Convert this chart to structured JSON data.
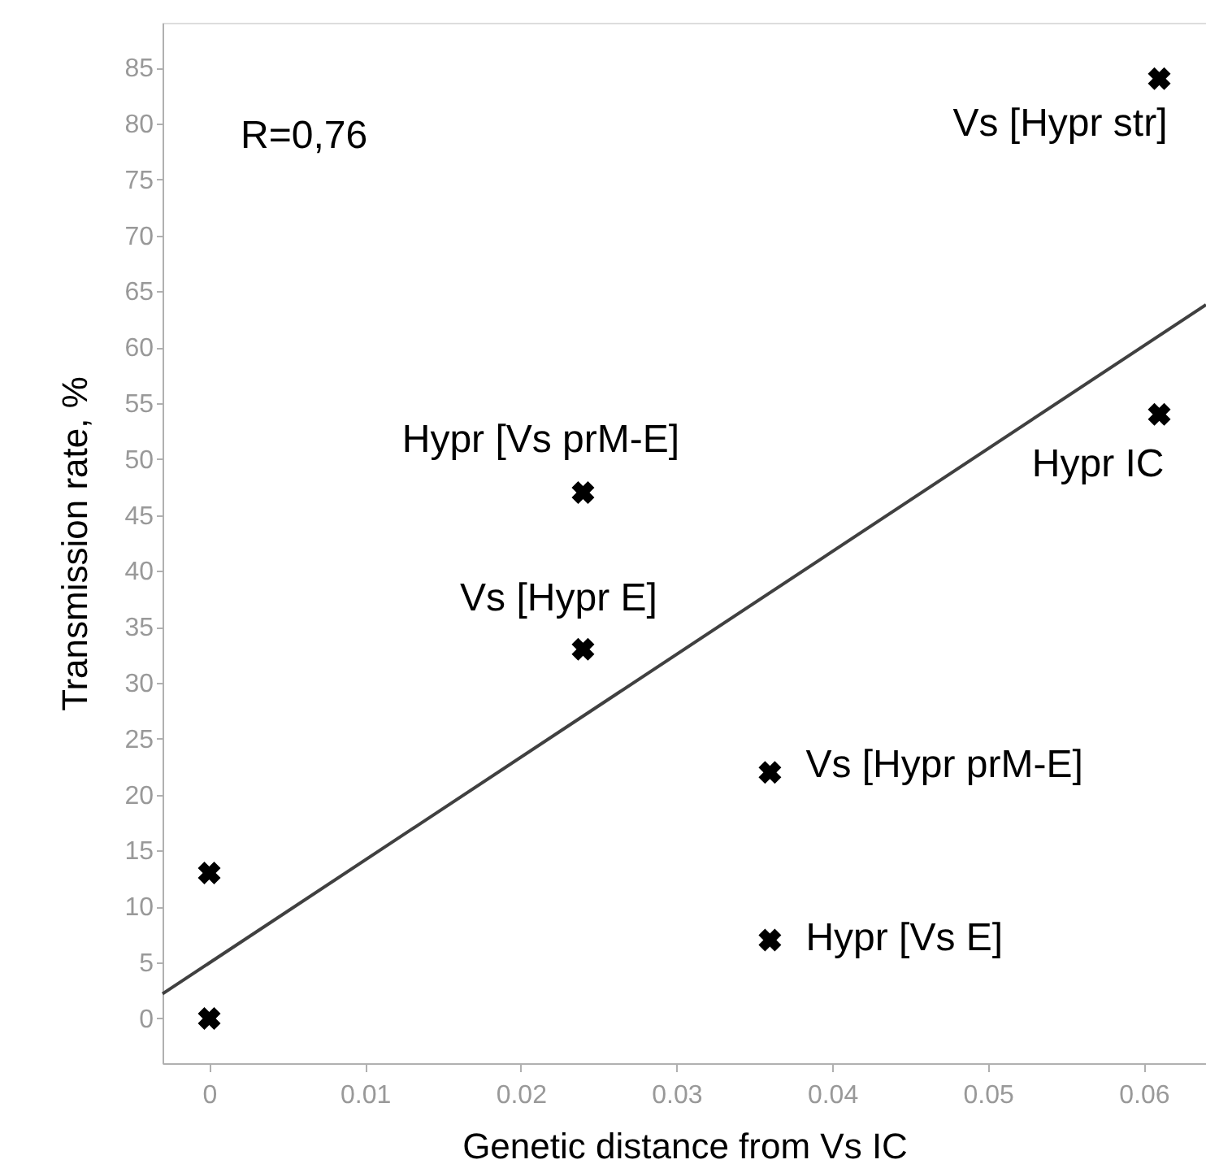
{
  "chart_data": {
    "type": "scatter",
    "xlabel": "Genetic distance from Vs IC",
    "ylabel": "Transmission rate, %",
    "xlim": [
      -0.003,
      0.064
    ],
    "ylim": [
      -4,
      89
    ],
    "xticks": [
      0,
      0.01,
      0.02,
      0.03,
      0.04,
      0.05,
      0.06
    ],
    "yticks": [
      0,
      5,
      10,
      15,
      20,
      25,
      30,
      35,
      40,
      45,
      50,
      55,
      60,
      65,
      70,
      75,
      80,
      85
    ],
    "grid": false,
    "marker": "cross",
    "series": [
      {
        "color": "#000000",
        "x": [
          0,
          0,
          0.024,
          0.024,
          0.036,
          0.036,
          0.061,
          0.061
        ],
        "values": [
          0,
          13,
          33,
          47,
          22,
          7,
          54,
          84
        ]
      },
      {
        "type": "line",
        "color": "#404040",
        "marker": "none",
        "x": [
          -0.003,
          0.064
        ],
        "values": [
          2.2,
          63.8
        ]
      }
    ],
    "annotations": [
      "R=0,76",
      {
        "text": "Vs [Hypr str]",
        "x": 0.061,
        "y": 84
      },
      {
        "text": "Hypr [Vs prM-E]",
        "x": 0.024,
        "y": 47
      },
      {
        "text": "Vs [Hypr E]",
        "x": 0.024,
        "y": 33
      },
      {
        "text": "Vs [Hypr prM-E]",
        "x": 0.036,
        "y": 22
      },
      {
        "text": "Hypr [Vs E]",
        "x": 0.036,
        "y": 7
      },
      {
        "text": "Hypr IC",
        "x": 0.061,
        "y": 54
      }
    ]
  }
}
